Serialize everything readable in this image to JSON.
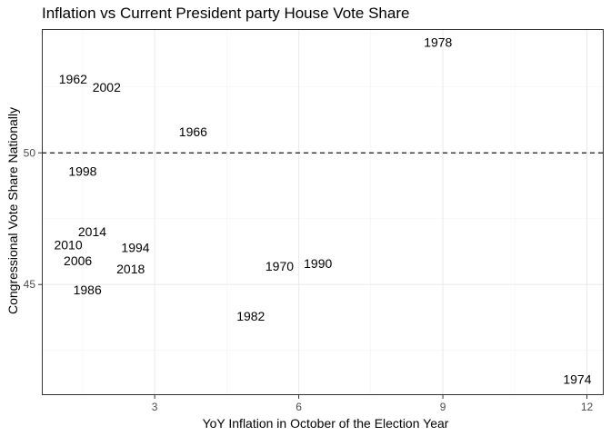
{
  "chart_data": {
    "type": "scatter",
    "title": "Inflation vs Current President party House Vote Share",
    "xlabel": "YoY Inflation in October of the Election Year",
    "ylabel": "Congressional Vote Share Nationally",
    "xlim": [
      0.65,
      12.35
    ],
    "ylim": [
      40.8,
      54.7
    ],
    "x_major_ticks": [
      3,
      6,
      9,
      12
    ],
    "x_minor_ticks": [
      1.5,
      4.5,
      7.5,
      10.5
    ],
    "y_major_ticks": [
      45,
      50
    ],
    "y_minor_ticks": [
      42.5,
      47.5,
      52.5
    ],
    "grid": true,
    "reference_line": {
      "axis": "y",
      "value": 50,
      "style": "dashed"
    },
    "points": [
      {
        "label": "1962",
        "x": 1.3,
        "y": 52.8
      },
      {
        "label": "2002",
        "x": 2.0,
        "y": 52.5
      },
      {
        "label": "1966",
        "x": 3.8,
        "y": 50.8
      },
      {
        "label": "1998",
        "x": 1.5,
        "y": 49.3
      },
      {
        "label": "2014",
        "x": 1.7,
        "y": 47.0
      },
      {
        "label": "2010",
        "x": 1.2,
        "y": 46.5
      },
      {
        "label": "1994",
        "x": 2.6,
        "y": 46.4
      },
      {
        "label": "2006",
        "x": 1.4,
        "y": 45.9
      },
      {
        "label": "2018",
        "x": 2.5,
        "y": 45.6
      },
      {
        "label": "1986",
        "x": 1.6,
        "y": 44.8
      },
      {
        "label": "1970",
        "x": 5.6,
        "y": 45.7
      },
      {
        "label": "1990",
        "x": 6.4,
        "y": 45.8
      },
      {
        "label": "1982",
        "x": 5.0,
        "y": 43.8
      },
      {
        "label": "1978",
        "x": 8.9,
        "y": 54.2
      },
      {
        "label": "1974",
        "x": 11.8,
        "y": 41.4
      }
    ]
  }
}
